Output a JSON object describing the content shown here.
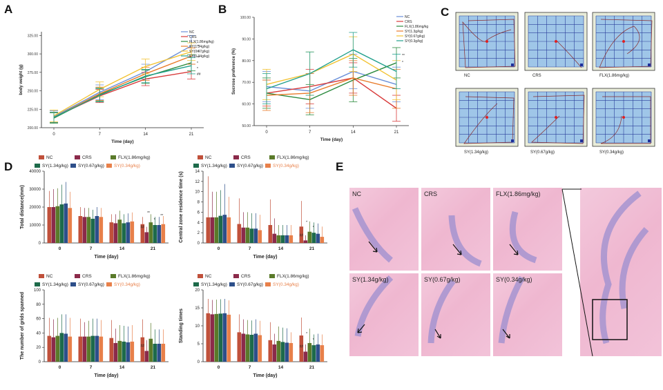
{
  "panels": {
    "A": {
      "letter": "A"
    },
    "B": {
      "letter": "B"
    },
    "C": {
      "letter": "C"
    },
    "D": {
      "letter": "D"
    },
    "E": {
      "letter": "E"
    }
  },
  "groups": [
    "NC",
    "CRS",
    "FLX(1.86mg/kg)",
    "SY(1.34g/kg)",
    "SY(0.67g/kg)",
    "SY(0.34g/kg)"
  ],
  "colors": {
    "NC": "#6a8fd8",
    "CRS": "#d83a3a",
    "FLX": "#2b8a3e",
    "SY134": "#e87b2a",
    "SY067": "#f2c232",
    "SY034": "#22a08c"
  },
  "bar_colors": [
    "#c0503a",
    "#8b2a4a",
    "#5a7a2a",
    "#1d6a4a",
    "#2d4f8a",
    "#e8804a"
  ],
  "bar_legend": [
    "NC",
    "CRS",
    "FLX(1.86mg/kg)",
    "SY(1.34g/kg)",
    "SY(0.67g/kg)",
    "SY(0.34g/kg)"
  ],
  "chart_data": [
    {
      "id": "A",
      "type": "line",
      "title": "",
      "xlabel": "Time (day)",
      "ylabel": "body weight (g)",
      "x": [
        0,
        7,
        14,
        21
      ],
      "ylim": [
        200,
        330
      ],
      "yticks": [
        200,
        225,
        250,
        275,
        300,
        325
      ],
      "legend": [
        "NC",
        "CRS",
        "FLX(1.86mg/kg)",
        "SY(1.34g/kg)",
        "SY(0.67g/kg)",
        "SY(0.34g/kg)"
      ],
      "series": [
        {
          "name": "NC",
          "values": [
            215,
            248,
            276,
            311
          ],
          "err": [
            8,
            10,
            10,
            14
          ]
        },
        {
          "name": "CRS",
          "values": [
            214,
            243,
            266,
            276
          ],
          "err": [
            7,
            9,
            9,
            10
          ]
        },
        {
          "name": "FLX(1.86mg/kg)",
          "values": [
            213,
            245,
            269,
            288
          ],
          "err": [
            7,
            9,
            9,
            11
          ]
        },
        {
          "name": "SY(1.34g/kg)",
          "values": [
            214,
            246,
            273,
            297
          ],
          "err": [
            7,
            9,
            9,
            11
          ]
        },
        {
          "name": "SY(0.67g/kg)",
          "values": [
            216,
            252,
            283,
            303
          ],
          "err": [
            8,
            10,
            10,
            12
          ]
        },
        {
          "name": "SY(0.34g/kg)",
          "values": [
            214,
            244,
            270,
            284
          ],
          "err": [
            7,
            9,
            9,
            11
          ]
        }
      ],
      "annotations": [
        "**",
        "**",
        "**",
        "*",
        "*",
        "##"
      ]
    },
    {
      "id": "B",
      "type": "line",
      "title": "",
      "xlabel": "Time (day)",
      "ylabel": "Sucrose preference (%)",
      "x": [
        0,
        7,
        14,
        21
      ],
      "ylim": [
        50,
        100
      ],
      "yticks": [
        50,
        60,
        70,
        80,
        90,
        100
      ],
      "legend": [
        "NC",
        "CRS",
        "FLX(1.86mg/kg)",
        "SY(1.3g/kg)",
        "SY(0.67g/kg)",
        "SY(0.3g/kg)"
      ],
      "series": [
        {
          "name": "NC",
          "values": [
            68,
            66,
            75,
            69
          ],
          "err": [
            7,
            8,
            8,
            8
          ]
        },
        {
          "name": "CRS",
          "values": [
            65,
            68,
            72,
            58
          ],
          "err": [
            6,
            8,
            7,
            6
          ]
        },
        {
          "name": "FLX(1.86mg/kg)",
          "values": [
            65,
            62,
            71,
            79
          ],
          "err": [
            7,
            7,
            10,
            7
          ]
        },
        {
          "name": "SY(1.3g/kg)",
          "values": [
            64,
            65,
            72,
            67
          ],
          "err": [
            7,
            9,
            8,
            9
          ]
        },
        {
          "name": "SY(0.67g/kg)",
          "values": [
            69,
            74,
            83,
            71
          ],
          "err": [
            7,
            10,
            8,
            9
          ]
        },
        {
          "name": "SY(0.3g/kg)",
          "values": [
            67,
            74,
            85,
            75
          ],
          "err": [
            7,
            10,
            8,
            8
          ]
        }
      ],
      "annotations": [
        "**",
        "*"
      ]
    },
    {
      "id": "D1",
      "type": "bar",
      "title": "",
      "xlabel": "Time (day)",
      "ylabel": "Total distance(mm)",
      "categories": [
        "0",
        "7",
        "14",
        "21"
      ],
      "ylim": [
        0,
        40000
      ],
      "yticks": [
        0,
        10000,
        20000,
        30000,
        40000
      ],
      "series": [
        {
          "name": "NC",
          "values": [
            20000,
            15000,
            11500,
            10500
          ],
          "err": [
            9000,
            5000,
            4500,
            4000
          ]
        },
        {
          "name": "CRS",
          "values": [
            20000,
            14500,
            11000,
            6000
          ],
          "err": [
            10000,
            5000,
            5000,
            3000
          ]
        },
        {
          "name": "FLX(1.86mg/kg)",
          "values": [
            20500,
            14500,
            13000,
            11500
          ],
          "err": [
            10000,
            5000,
            5000,
            4500
          ]
        },
        {
          "name": "SY(1.34g/kg)",
          "values": [
            21500,
            13500,
            11000,
            10000
          ],
          "err": [
            11000,
            5000,
            5000,
            4500
          ]
        },
        {
          "name": "SY(0.67g/kg)",
          "values": [
            22000,
            15000,
            11500,
            10000
          ],
          "err": [
            12000,
            5000,
            5000,
            4500
          ]
        },
        {
          "name": "SY(0.34g/kg)",
          "values": [
            19500,
            14500,
            12000,
            10500
          ],
          "err": [
            9000,
            5000,
            5000,
            4500
          ]
        }
      ],
      "annotations": [
        "##",
        "**",
        "*",
        "**"
      ]
    },
    {
      "id": "D2",
      "type": "bar",
      "title": "",
      "xlabel": "Time (day)",
      "ylabel": "Central zone residence time (s)",
      "categories": [
        "0",
        "7",
        "14",
        "21"
      ],
      "ylim": [
        0,
        14
      ],
      "yticks": [
        0,
        2,
        4,
        6,
        8,
        10,
        12,
        14
      ],
      "series": [
        {
          "name": "NC",
          "values": [
            5,
            3.7,
            3.5,
            3.2
          ],
          "err": [
            8,
            5,
            5,
            5
          ]
        },
        {
          "name": "CRS",
          "values": [
            5,
            3,
            1.8,
            0.5
          ],
          "err": [
            5,
            3,
            3,
            1
          ]
        },
        {
          "name": "FLX(1.86mg/kg)",
          "values": [
            5,
            3,
            1.5,
            2.2
          ],
          "err": [
            5,
            3,
            2,
            2
          ]
        },
        {
          "name": "SY(1.34g/kg)",
          "values": [
            5.3,
            2.8,
            1.5,
            2
          ],
          "err": [
            5,
            3,
            2,
            2
          ]
        },
        {
          "name": "SY(0.67g/kg)",
          "values": [
            5.5,
            2.8,
            1.5,
            1.8
          ],
          "err": [
            6,
            3,
            2,
            2
          ]
        },
        {
          "name": "SY(0.34g/kg)",
          "values": [
            5,
            2.5,
            1.5,
            1.2
          ],
          "err": [
            4,
            3,
            2,
            2
          ]
        }
      ],
      "annotations": [
        "##",
        "*",
        "*"
      ]
    },
    {
      "id": "D3",
      "type": "bar",
      "title": "",
      "xlabel": "Time (day)",
      "ylabel": "The number of grids spanned",
      "categories": [
        "0",
        "7",
        "14",
        "21"
      ],
      "ylim": [
        0,
        100
      ],
      "yticks": [
        0,
        20,
        40,
        60,
        80,
        100
      ],
      "series": [
        {
          "name": "NC",
          "values": [
            36,
            35,
            33,
            34
          ],
          "err": [
            25,
            25,
            25,
            25
          ]
        },
        {
          "name": "CRS",
          "values": [
            34,
            35,
            26,
            15
          ],
          "err": [
            25,
            20,
            20,
            15
          ]
        },
        {
          "name": "FLX(1.86mg/kg)",
          "values": [
            36,
            35,
            29,
            32
          ],
          "err": [
            25,
            22,
            22,
            22
          ]
        },
        {
          "name": "SY(1.34g/kg)",
          "values": [
            40,
            36,
            28,
            25
          ],
          "err": [
            26,
            24,
            22,
            20
          ]
        },
        {
          "name": "SY(0.67g/kg)",
          "values": [
            39,
            36,
            27,
            25
          ],
          "err": [
            27,
            24,
            22,
            20
          ]
        },
        {
          "name": "SY(0.34g/kg)",
          "values": [
            35,
            35,
            28,
            25
          ],
          "err": [
            26,
            23,
            23,
            20
          ]
        }
      ],
      "annotations": [
        "##"
      ]
    },
    {
      "id": "D4",
      "type": "bar",
      "title": "",
      "xlabel": "Time (day)",
      "ylabel": "Standing times",
      "categories": [
        "0",
        "7",
        "14",
        "21"
      ],
      "ylim": [
        0,
        20
      ],
      "yticks": [
        0,
        5,
        10,
        15,
        20
      ],
      "series": [
        {
          "name": "NC",
          "values": [
            13.5,
            8.2,
            6,
            7.3
          ],
          "err": [
            4,
            5,
            5,
            5
          ]
        },
        {
          "name": "CRS",
          "values": [
            13.2,
            7.8,
            4.8,
            2.8
          ],
          "err": [
            4,
            4,
            3,
            2
          ]
        },
        {
          "name": "FLX(1.86mg/kg)",
          "values": [
            13.3,
            7.6,
            5.8,
            5.2
          ],
          "err": [
            4,
            4,
            4,
            4
          ]
        },
        {
          "name": "SY(1.34g/kg)",
          "values": [
            13.4,
            7.5,
            5.5,
            4.6
          ],
          "err": [
            4,
            4,
            4,
            3
          ]
        },
        {
          "name": "SY(0.67g/kg)",
          "values": [
            13.5,
            7.8,
            5.3,
            4.8
          ],
          "err": [
            4,
            4,
            4,
            3
          ]
        },
        {
          "name": "SY(0.34g/kg)",
          "values": [
            13.1,
            7.4,
            5.2,
            4.6
          ],
          "err": [
            4,
            4,
            3,
            3
          ]
        }
      ],
      "annotations": [
        "##",
        "*",
        "*"
      ]
    }
  ],
  "maze": {
    "captions": [
      "NC",
      "CRS",
      "FLX(1.86mg/kg)",
      "SY(1.34g/kg)",
      "SY(0.67g/kg)",
      "SY(0.34g/kg)"
    ]
  },
  "histology": {
    "captions": [
      "NC",
      "CRS",
      "FLX(1.86mg/kg)",
      "SY(1.34g/kg)",
      "SY(0.67g/kg)",
      "SY(0.34g/kg)"
    ]
  }
}
